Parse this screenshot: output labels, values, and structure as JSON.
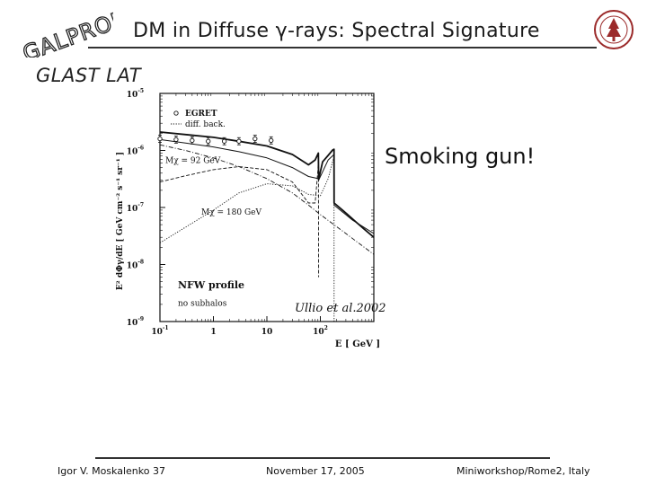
{
  "header": {
    "logo": "GALPROP",
    "title": "DM in Diffuse γ-rays: Spectral Signature",
    "subtitle": "GLAST LAT"
  },
  "callout": "Smoking gun!",
  "credit": "Ullio et al.2002",
  "footer": {
    "author": "Igor V. Moskalenko 37",
    "date": "November 17, 2005",
    "venue": "Miniworkshop/Rome2, Italy"
  },
  "icons": {
    "logo": "galprop-logo-icon",
    "seal": "university-seal-icon"
  },
  "chart_data": {
    "type": "line",
    "xscale": "log",
    "yscale": "log",
    "xlim": [
      0.1,
      1000
    ],
    "ylim": [
      1e-09,
      1e-05
    ],
    "xlabel": "E [ GeV ]",
    "ylabel": "E² dΦγ/dE [ GeV cm⁻² s⁻¹ sr⁻¹ ]",
    "xticks": [
      {
        "value": 0.1,
        "base": "10",
        "exp": "-1"
      },
      {
        "value": 1,
        "base": "1",
        "exp": ""
      },
      {
        "value": 10,
        "base": "10",
        "exp": ""
      },
      {
        "value": 100,
        "base": "10",
        "exp": "2"
      }
    ],
    "yticks": [
      {
        "value": 1e-05,
        "base": "10",
        "exp": "-5"
      },
      {
        "value": 1e-06,
        "base": "10",
        "exp": "-6"
      },
      {
        "value": 1e-07,
        "base": "10",
        "exp": "-7"
      },
      {
        "value": 1e-08,
        "base": "10",
        "exp": "-8"
      },
      {
        "value": 1e-09,
        "base": "10",
        "exp": "-9"
      }
    ],
    "legend": [
      "EGRET",
      "diff. back."
    ],
    "annotations": [
      "Mχ = 92 GeV",
      "Mχ = 180 GeV",
      "NFW profile",
      "no subhalos"
    ],
    "egret_points": [
      {
        "x": 0.1,
        "y": 1.6e-06
      },
      {
        "x": 0.2,
        "y": 1.55e-06
      },
      {
        "x": 0.4,
        "y": 1.5e-06
      },
      {
        "x": 0.8,
        "y": 1.45e-06
      },
      {
        "x": 1.6,
        "y": 1.45e-06
      },
      {
        "x": 3.0,
        "y": 1.45e-06
      },
      {
        "x": 6.0,
        "y": 1.6e-06
      },
      {
        "x": 12,
        "y": 1.5e-06
      }
    ],
    "series": [
      {
        "style": "solid-thick",
        "points": [
          [
            0.1,
            2.1e-06
          ],
          [
            0.3,
            1.9e-06
          ],
          [
            1,
            1.7e-06
          ],
          [
            3,
            1.45e-06
          ],
          [
            10,
            1.2e-06
          ],
          [
            30,
            8.5e-07
          ],
          [
            60,
            5.6e-07
          ],
          [
            80,
            6.8e-07
          ],
          [
            92,
            9e-07
          ],
          [
            93,
            3.1e-07
          ],
          [
            110,
            6.3e-07
          ],
          [
            140,
            8.2e-07
          ],
          [
            170,
            1.02e-06
          ],
          [
            180,
            1.05e-06
          ],
          [
            181,
            1.2e-07
          ],
          [
            300,
            8e-08
          ],
          [
            600,
            4.5e-08
          ],
          [
            1000,
            3e-08
          ]
        ]
      },
      {
        "style": "solid-thin",
        "points": [
          [
            0.1,
            1.55e-06
          ],
          [
            0.3,
            1.35e-06
          ],
          [
            1,
            1.15e-06
          ],
          [
            3,
            9.5e-07
          ],
          [
            10,
            7.4e-07
          ],
          [
            30,
            5e-07
          ],
          [
            60,
            3.5e-07
          ],
          [
            92,
            3.2e-07
          ],
          [
            93,
            3e-07
          ],
          [
            140,
            6.8e-07
          ],
          [
            180,
            8.5e-07
          ],
          [
            181,
            1.1e-07
          ],
          [
            400,
            6e-08
          ],
          [
            1000,
            3.5e-08
          ]
        ]
      },
      {
        "style": "dashed",
        "points": [
          [
            0.1,
            2.8e-07
          ],
          [
            0.3,
            3.6e-07
          ],
          [
            1,
            4.6e-07
          ],
          [
            3,
            5.2e-07
          ],
          [
            10,
            4.6e-07
          ],
          [
            30,
            2.8e-07
          ],
          [
            60,
            1.2e-07
          ],
          [
            80,
            1.2e-07
          ],
          [
            90,
            4.5e-07
          ],
          [
            92,
            8.5e-07
          ],
          [
            93,
            6e-09
          ]
        ]
      },
      {
        "style": "dotted",
        "points": [
          [
            0.1,
            2.4e-08
          ],
          [
            0.3,
            4.5e-08
          ],
          [
            1,
            9e-08
          ],
          [
            3,
            1.8e-07
          ],
          [
            10,
            2.6e-07
          ],
          [
            30,
            2.4e-07
          ],
          [
            60,
            1.7e-07
          ],
          [
            100,
            1.6e-07
          ],
          [
            140,
            3.2e-07
          ],
          [
            170,
            6.5e-07
          ],
          [
            180,
            7.5e-07
          ],
          [
            181,
            1e-09
          ]
        ]
      },
      {
        "style": "dashdot",
        "points": [
          [
            0.1,
            1.25e-06
          ],
          [
            0.3,
            1e-06
          ],
          [
            1,
            7.4e-07
          ],
          [
            3,
            5.2e-07
          ],
          [
            10,
            3.2e-07
          ],
          [
            30,
            1.8e-07
          ],
          [
            60,
            1.1e-07
          ],
          [
            100,
            7.5e-08
          ],
          [
            300,
            3.5e-08
          ],
          [
            1000,
            1.5e-08
          ]
        ]
      }
    ]
  }
}
